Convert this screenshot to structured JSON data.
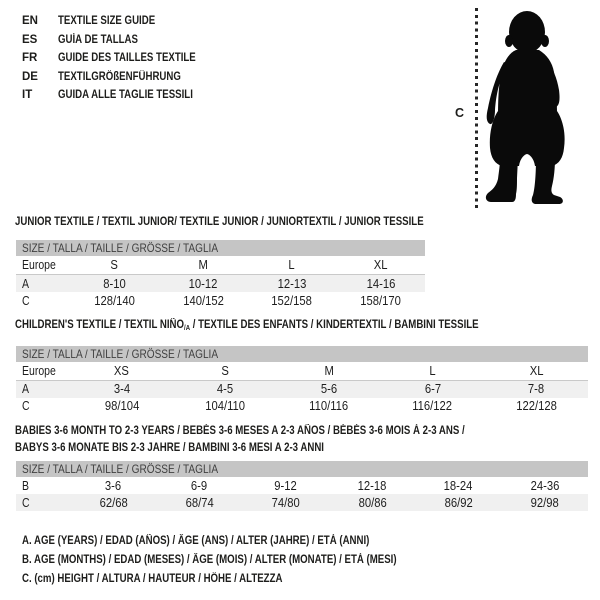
{
  "colors": {
    "background": "#ffffff",
    "text": "#1d1d1b",
    "header_bar": "#c5c5c5",
    "header_bar_text": "#3f3f3f",
    "row_stripe": "#f0f0f0",
    "rule_line": "#c9c9c9",
    "silhouette": "#0a0a0a"
  },
  "languages": [
    {
      "code": "EN",
      "title": "TEXTILE SIZE GUIDE"
    },
    {
      "code": "ES",
      "title": "GUÍA DE TALLAS"
    },
    {
      "code": "FR",
      "title": "GUIDE DES TAILLES TEXTILE"
    },
    {
      "code": "DE",
      "title": "TEXTILGRÖßENFÜHRUNG"
    },
    {
      "code": "IT",
      "title": "GUIDA ALLE TAGLIE TESSILI"
    }
  ],
  "figure": {
    "icon": "baby-silhouette-icon",
    "height_label": "C"
  },
  "tables": [
    {
      "id": "junior",
      "title_parts": [
        {
          "t": "JUNIOR TEXTILE / TEXTIL JUNIOR/ TEXTILE JUNIOR / JUNIORTEXTIL / JUNIOR TESSILE"
        }
      ],
      "size_header": "SIZE / TALLA / TAILLE / GRÖSSE / TAGLIA",
      "rows": [
        {
          "label": "Europe",
          "cells": [
            "S",
            "M",
            "L",
            "XL"
          ],
          "header": true
        },
        {
          "label": "A",
          "cells": [
            "8-10",
            "10-12",
            "12-13",
            "14-16"
          ],
          "striped": true
        },
        {
          "label": "C",
          "cells": [
            "128/140",
            "140/152",
            "152/158",
            "158/170"
          ]
        }
      ]
    },
    {
      "id": "children",
      "title_parts": [
        {
          "t": "CHILDREN'S TEXTILE / TEXTIL NIÑO"
        },
        {
          "t": "/A",
          "sub": true
        },
        {
          "t": " / TEXTILE DES ENFANTS / KINDERTEXTIL / BAMBINI TESSILE"
        }
      ],
      "size_header": "SIZE / TALLA / TAILLE / GRÖSSE / TAGLIA",
      "rows": [
        {
          "label": "Europe",
          "cells": [
            "XS",
            "S",
            "M",
            "L",
            "XL"
          ],
          "header": true
        },
        {
          "label": "A",
          "cells": [
            "3-4",
            "4-5",
            "5-6",
            "6-7",
            "7-8"
          ],
          "striped": true
        },
        {
          "label": "C",
          "cells": [
            "98/104",
            "104/110",
            "110/116",
            "116/122",
            "122/128"
          ]
        }
      ]
    },
    {
      "id": "babies",
      "title_parts": [
        {
          "t": "BABIES 3-6 MONTH TO 2-3 YEARS / BEBÉS 3-6 MESES A 2-3 AÑOS / BÉBÉS 3-6 MOIS À 2-3 ANS /"
        },
        {
          "t": "BABYS 3-6 MONATE BIS 2-3 JAHRE / BAMBINI 3-6 MESI A 2-3 ANNI",
          "br": true
        }
      ],
      "size_header": "SIZE / TALLA / TAILLE / GRÖSSE / TAGLIA",
      "rows": [
        {
          "label": "B",
          "cells": [
            "3-6",
            "6-9",
            "9-12",
            "12-18",
            "18-24",
            "24-36"
          ]
        },
        {
          "label": "C",
          "cells": [
            "62/68",
            "68/74",
            "74/80",
            "80/86",
            "86/92",
            "92/98"
          ],
          "striped": true
        }
      ]
    }
  ],
  "notes": [
    "A. AGE (YEARS) / EDAD (AÑOS) / ÂGE (ANS) / ALTER (JAHRE) / ETÀ (ANNI)",
    "B. AGE (MONTHS) / EDAD (MESES) / ÂGE (MOIS) / ALTER (MONATE) / ETÀ (MESI)",
    "C. (cm) HEIGHT / ALTURA / HAUTEUR / HÖHE / ALTEZZA"
  ]
}
